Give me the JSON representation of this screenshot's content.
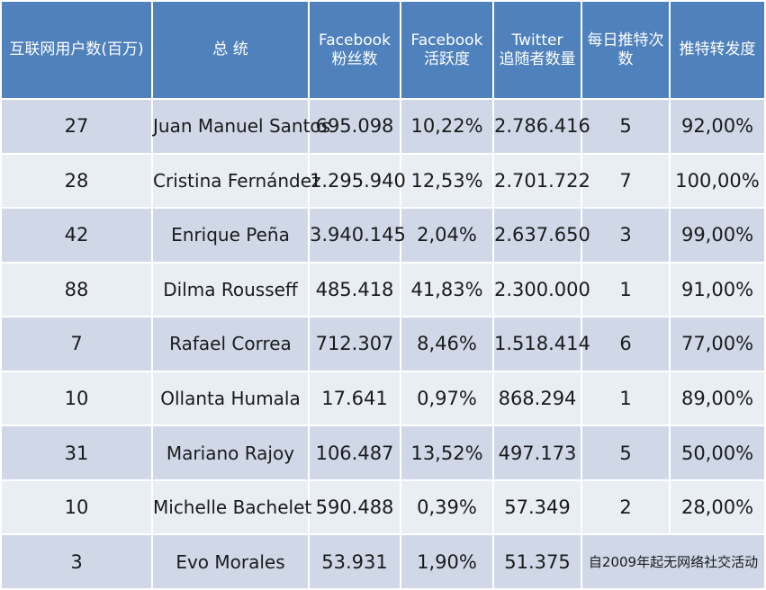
{
  "headers": {
    "internet_users": "互联网用户数(百万)",
    "president": "总 统",
    "fb_fans_line1": "Facebook",
    "fb_fans_line2": "粉丝数",
    "fb_activity_line1": "Facebook",
    "fb_activity_line2": "活跃度",
    "tw_followers_line1": "Twitter",
    "tw_followers_line2": "追随者数量",
    "daily_tweets": "每日推特次数",
    "retweet_rate": "推特转发度"
  },
  "rows": [
    {
      "users": "27",
      "name": "Juan Manuel Santos",
      "fb_fans": "695.098",
      "fb_activity": "10,22%",
      "tw_followers": "2.786.416",
      "daily_tweets": "5",
      "retweet_rate": "92,00%"
    },
    {
      "users": "28",
      "name": "Cristina Fernández",
      "fb_fans": "1.295.940",
      "fb_activity": "12,53%",
      "tw_followers": "2.701.722",
      "daily_tweets": "7",
      "retweet_rate": "100,00%"
    },
    {
      "users": "42",
      "name": "Enrique Peña",
      "fb_fans": "3.940.145",
      "fb_activity": "2,04%",
      "tw_followers": "2.637.650",
      "daily_tweets": "3",
      "retweet_rate": "99,00%"
    },
    {
      "users": "88",
      "name": "Dilma Rousseff",
      "fb_fans": "485.418",
      "fb_activity": "41,83%",
      "tw_followers": "2.300.000",
      "daily_tweets": "1",
      "retweet_rate": "91,00%"
    },
    {
      "users": "7",
      "name": "Rafael Correa",
      "fb_fans": "712.307",
      "fb_activity": "8,46%",
      "tw_followers": "1.518.414",
      "daily_tweets": "6",
      "retweet_rate": "77,00%"
    },
    {
      "users": "10",
      "name": "Ollanta Humala",
      "fb_fans": "17.641",
      "fb_activity": "0,97%",
      "tw_followers": "868.294",
      "daily_tweets": "1",
      "retweet_rate": "89,00%"
    },
    {
      "users": "31",
      "name": "Mariano Rajoy",
      "fb_fans": "106.487",
      "fb_activity": "13,52%",
      "tw_followers": "497.173",
      "daily_tweets": "5",
      "retweet_rate": "50,00%"
    },
    {
      "users": "10",
      "name": "Michelle Bachelet",
      "fb_fans": "590.488",
      "fb_activity": "0,39%",
      "tw_followers": "57.349",
      "daily_tweets": "2",
      "retweet_rate": "28,00%"
    }
  ],
  "last_row": {
    "users": "3",
    "name": "Evo Morales",
    "fb_fans": "53.931",
    "fb_activity": "1,90%",
    "tw_followers": "51.375",
    "note": "自2009年起无网络社交活动"
  },
  "colors": {
    "header_bg": "#4f81bd",
    "row_dark": "#d0d8e8",
    "row_light": "#e9edf4"
  }
}
